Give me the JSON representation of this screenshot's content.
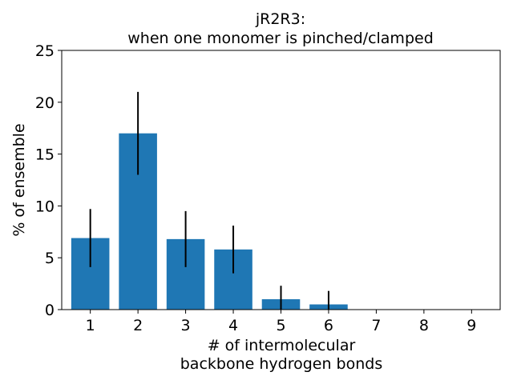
{
  "chart_data": {
    "type": "bar",
    "title_lines": [
      "jR2R3:",
      "when one monomer is pinched/clamped"
    ],
    "xlabel_lines": [
      "# of intermolecular",
      "backbone hydrogen bonds"
    ],
    "ylabel": "% of ensemble",
    "categories": [
      "1",
      "2",
      "3",
      "4",
      "5",
      "6",
      "7",
      "8",
      "9"
    ],
    "values": [
      6.9,
      17.0,
      6.8,
      5.8,
      1.0,
      0.5,
      0,
      0,
      0
    ],
    "errors": [
      2.8,
      4.0,
      2.7,
      2.3,
      1.3,
      1.3,
      0,
      0,
      0
    ],
    "xlim": [
      0.4,
      9.6
    ],
    "ylim": [
      0,
      25
    ],
    "yticks": [
      0,
      5,
      10,
      15,
      20,
      25
    ],
    "bar_color": "#1f77b4",
    "error_color": "#000000",
    "grid": false
  }
}
